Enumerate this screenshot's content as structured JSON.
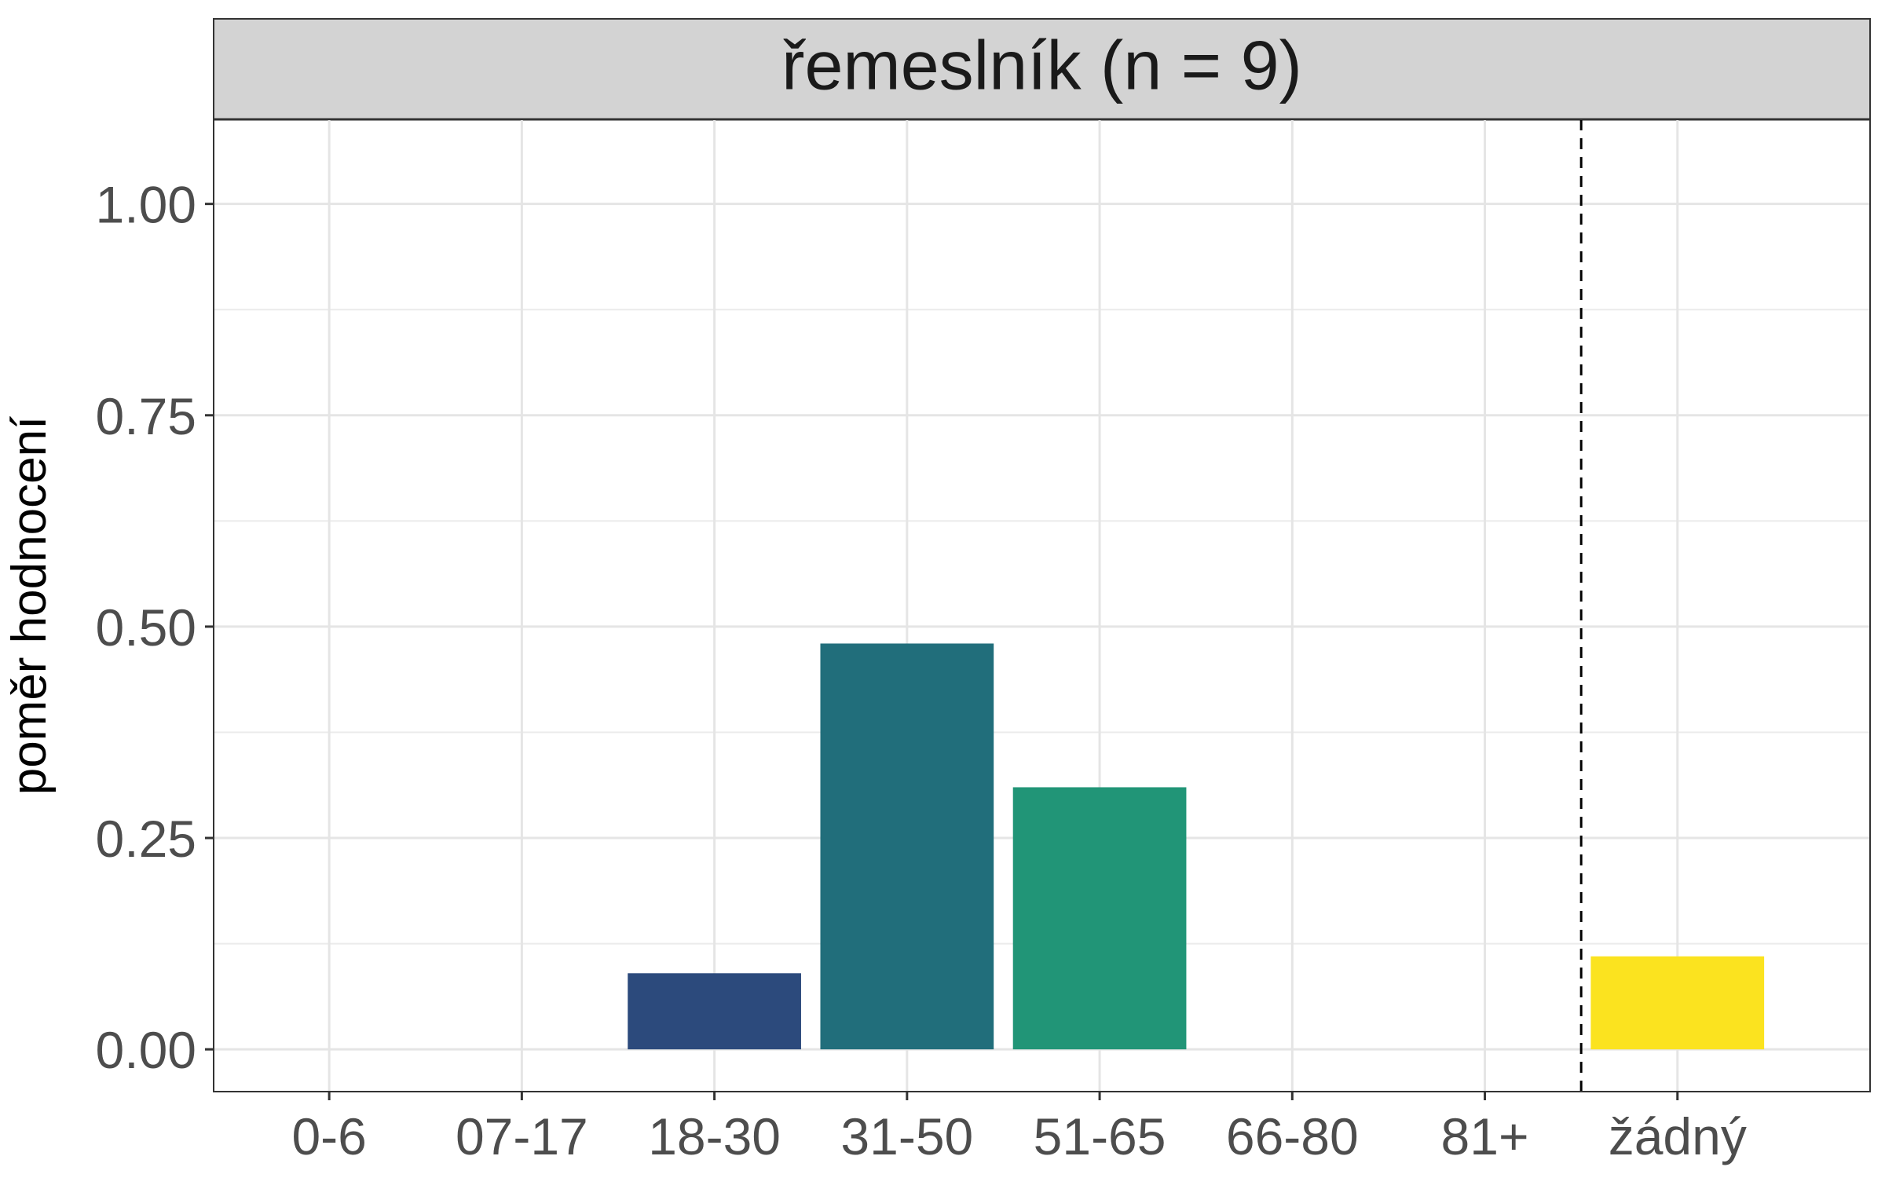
{
  "chart_data": {
    "type": "bar",
    "title": "řemeslník (n = 9)",
    "ylabel": "poměr hodnocení",
    "xlabel": "",
    "categories": [
      "0-6",
      "07-17",
      "18-30",
      "31-50",
      "51-65",
      "66-80",
      "81+",
      "žádný"
    ],
    "values": [
      0,
      0,
      0.09,
      0.48,
      0.31,
      0,
      0,
      0.11
    ],
    "colors": [
      "#440154",
      "#46327e",
      "#2c4a7c",
      "#216e7b",
      "#219577",
      "#5ec962",
      "#b5de2b",
      "#fbe31f"
    ],
    "ylim": [
      -0.05,
      1.1
    ],
    "yticks": [
      "0.00",
      "0.25",
      "0.50",
      "0.75",
      "1.00"
    ],
    "ytick_values": [
      0,
      0.25,
      0.5,
      0.75,
      1.0
    ],
    "reference_line": {
      "between_categories": [
        "81+",
        "žádný"
      ],
      "style": "dashed"
    },
    "grid": true,
    "theme": "bw",
    "strip_color": "#d3d3d3"
  }
}
